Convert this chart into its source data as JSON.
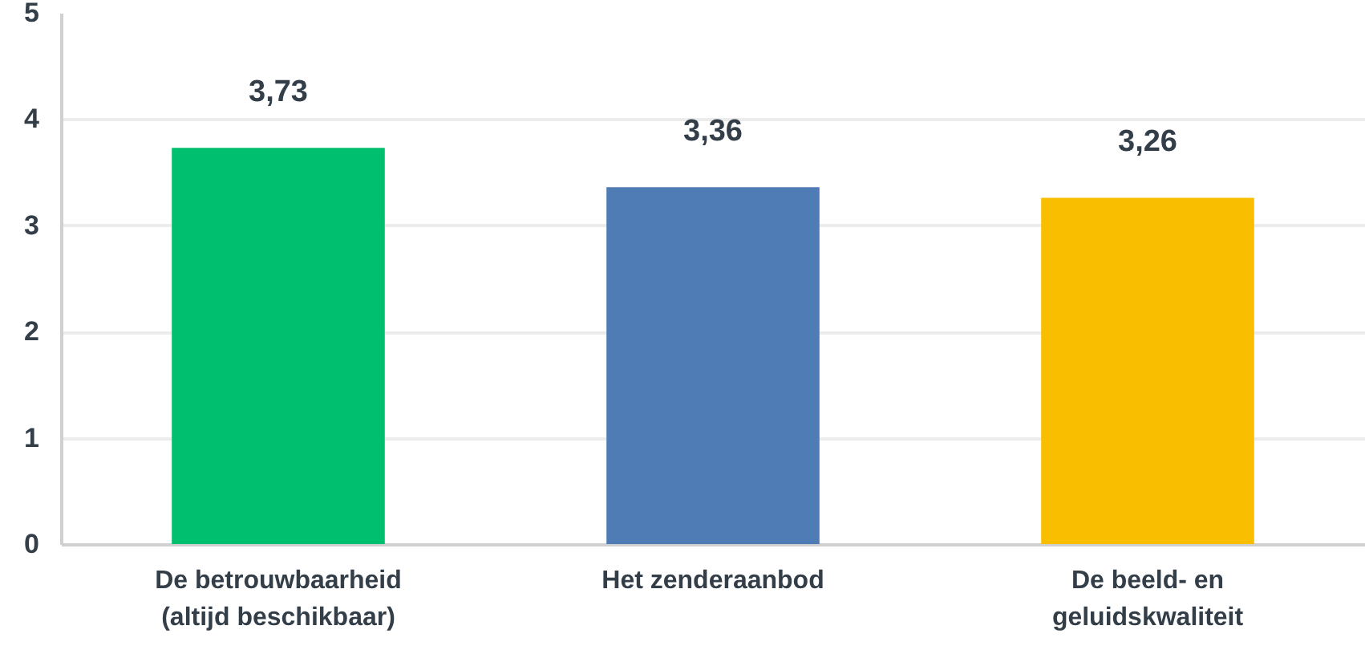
{
  "chart_data": {
    "type": "bar",
    "categories": [
      "De betrouwbaarheid (altijd beschikbaar)",
      "Het zenderaanbod",
      "De beeld- en geluidskwaliteit"
    ],
    "values": [
      3.73,
      3.36,
      3.26
    ],
    "colors": [
      "#00bf6f",
      "#507cb6",
      "#f9be00"
    ],
    "value_labels": [
      "3,73",
      "3,36",
      "3,26"
    ],
    "ylim": [
      0,
      5
    ],
    "yticks": [
      0,
      1,
      2,
      3,
      4,
      5
    ],
    "grid": "y"
  }
}
